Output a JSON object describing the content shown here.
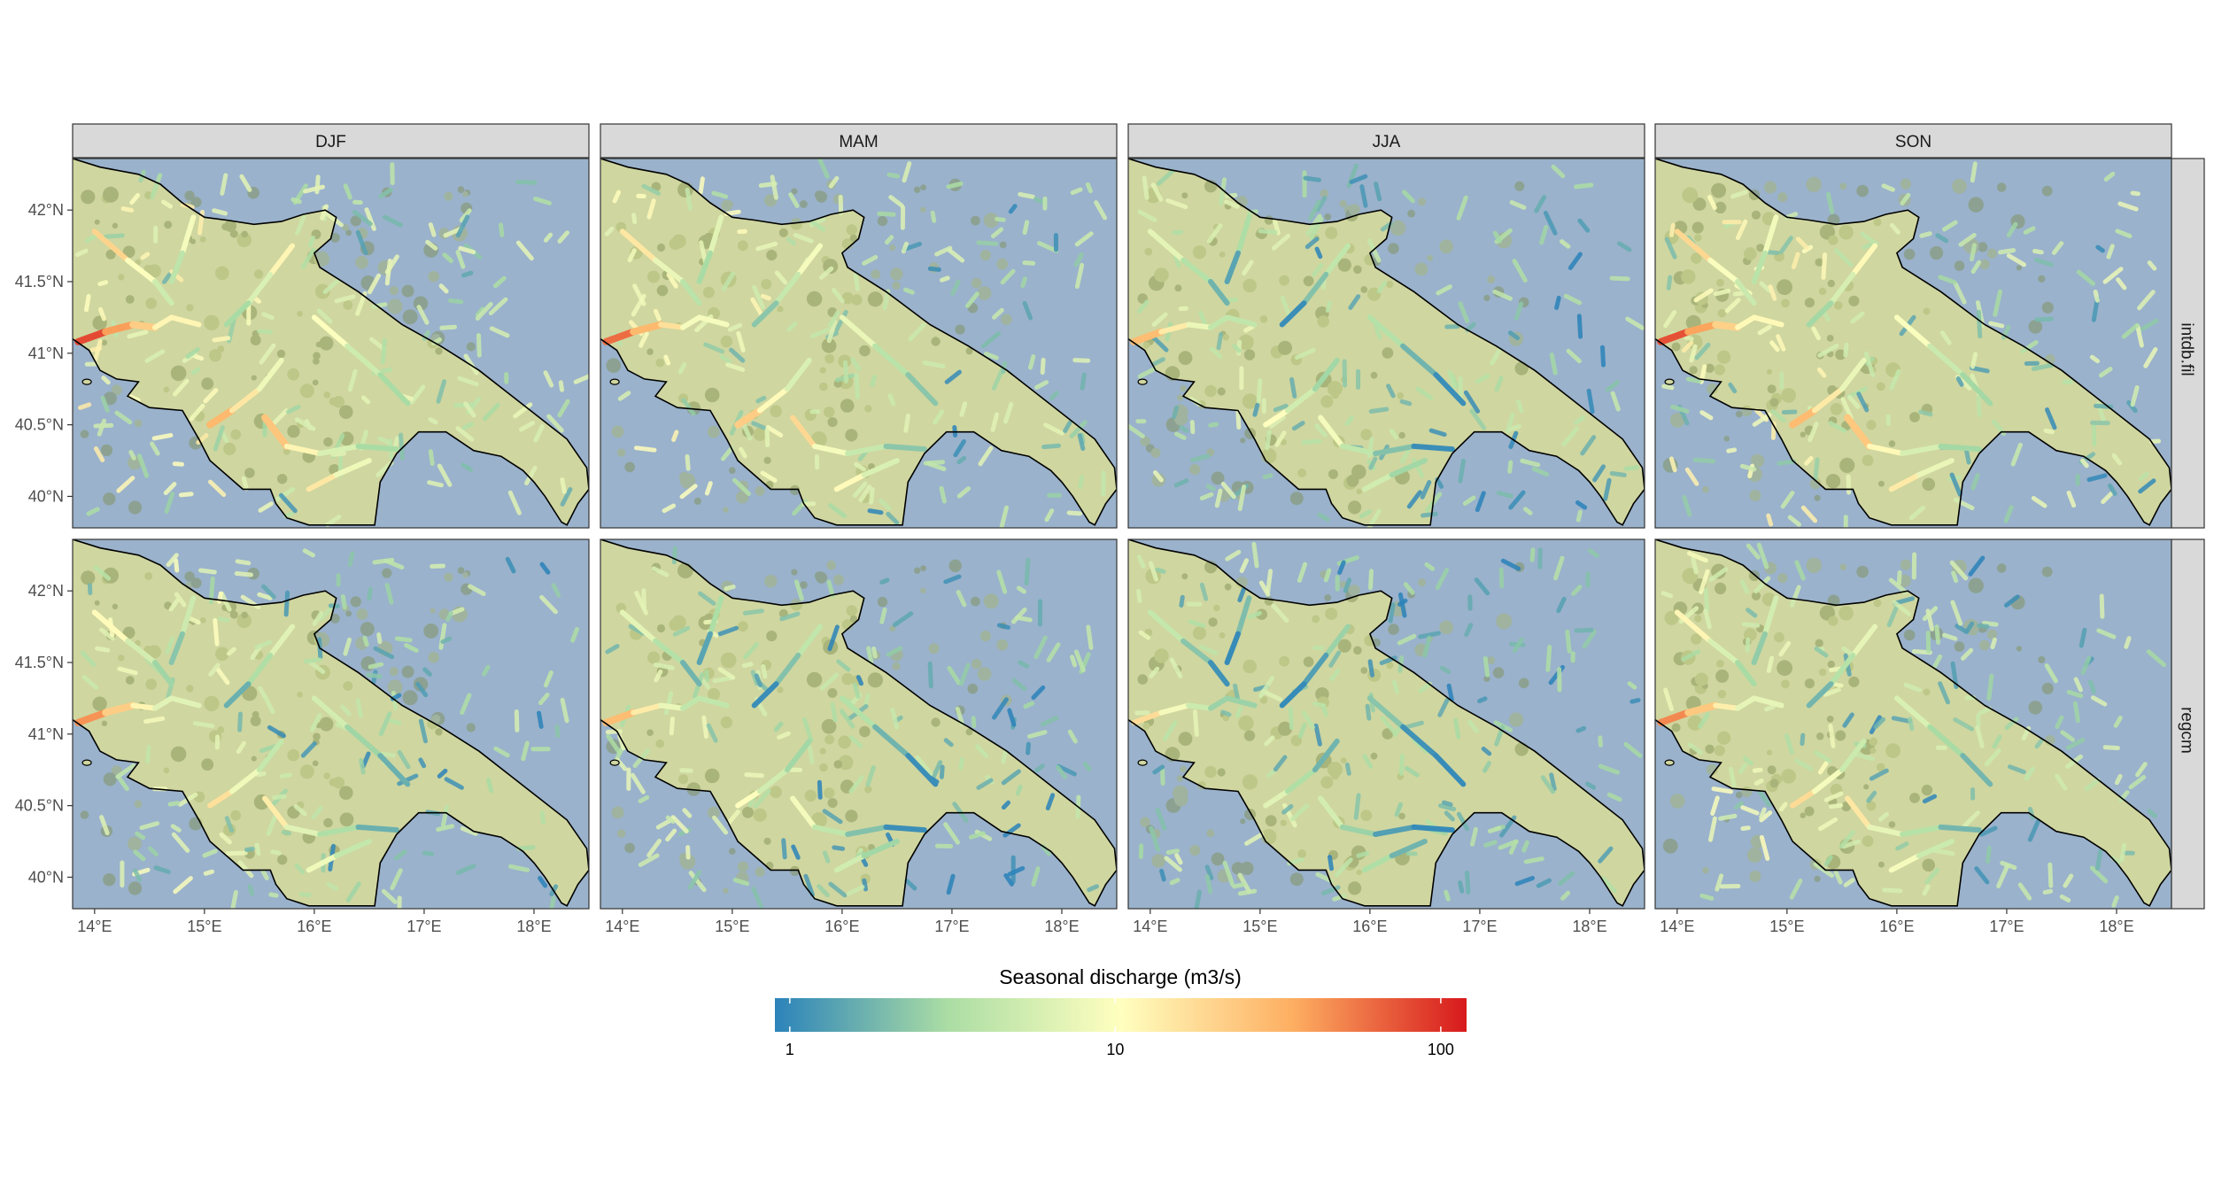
{
  "figure": {
    "columns": [
      "DJF",
      "MAM",
      "JJA",
      "SON"
    ],
    "rows": [
      "intdb.fil",
      "regcm"
    ],
    "x_ticks": [
      {
        "value": 14,
        "label": "14°E"
      },
      {
        "value": 15,
        "label": "15°E"
      },
      {
        "value": 16,
        "label": "16°E"
      },
      {
        "value": 17,
        "label": "17°E"
      },
      {
        "value": 18,
        "label": "18°E"
      }
    ],
    "y_ticks": [
      {
        "value": 40.0,
        "label": "40°N"
      },
      {
        "value": 40.5,
        "label": "40.5°N"
      },
      {
        "value": 41.0,
        "label": "41°N"
      },
      {
        "value": 41.5,
        "label": "41.5°N"
      },
      {
        "value": 42.0,
        "label": "42°N"
      }
    ],
    "extent": {
      "lon": [
        13.8,
        18.5
      ],
      "lat": [
        39.78,
        42.36
      ]
    }
  },
  "legend": {
    "title": "Seasonal discharge (m3/s)",
    "scale": "log10",
    "limits": [
      0.9,
      120
    ],
    "ticks": [
      {
        "value": 1,
        "label": "1"
      },
      {
        "value": 10,
        "label": "10"
      },
      {
        "value": 100,
        "label": "100"
      }
    ],
    "colors": [
      "#2b83ba",
      "#abdda4",
      "#ffffbf",
      "#fdae61",
      "#d7191c"
    ]
  },
  "colors": {
    "sea": "#9ab2cb",
    "land": "#cfd6a0",
    "strip": "#d9d9d9",
    "coast": "#000000"
  }
}
